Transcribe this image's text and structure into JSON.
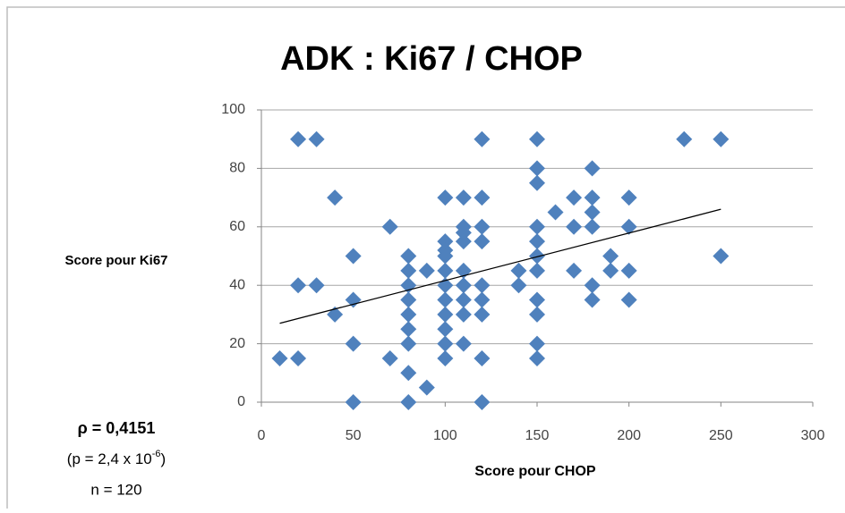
{
  "chart_data": {
    "type": "scatter",
    "title": "ADK : Ki67 / CHOP",
    "xlabel": "Score pour CHOP",
    "ylabel": "Score pour Ki67",
    "annotations": {
      "rho": "ρ = 0,4151",
      "p_text": "(p = 2,4 x 10",
      "p_exponent": "-6",
      "p_close": ")",
      "n": "n = 120"
    },
    "xlim": [
      0,
      300
    ],
    "xticks": [
      0,
      50,
      100,
      150,
      200,
      250,
      300
    ],
    "ylim": [
      0,
      100
    ],
    "yticks": [
      0,
      20,
      40,
      60,
      80,
      100
    ],
    "grid": true,
    "color": "#4f81bd",
    "x": [
      10,
      20,
      20,
      20,
      30,
      30,
      40,
      40,
      50,
      50,
      50,
      50,
      70,
      70,
      80,
      80,
      80,
      80,
      80,
      80,
      80,
      80,
      80,
      90,
      90,
      100,
      100,
      100,
      100,
      100,
      100,
      100,
      100,
      100,
      100,
      100,
      110,
      110,
      110,
      110,
      110,
      110,
      110,
      110,
      110,
      120,
      120,
      120,
      120,
      120,
      120,
      120,
      120,
      120,
      140,
      140,
      150,
      150,
      150,
      150,
      150,
      150,
      150,
      150,
      150,
      150,
      150,
      160,
      170,
      170,
      170,
      180,
      180,
      180,
      180,
      180,
      180,
      190,
      190,
      200,
      200,
      200,
      200,
      230,
      250,
      250
    ],
    "values": [
      15,
      15,
      40,
      90,
      90,
      40,
      70,
      30,
      50,
      35,
      20,
      0,
      60,
      15,
      50,
      45,
      40,
      35,
      30,
      25,
      20,
      10,
      0,
      45,
      5,
      70,
      55,
      52,
      50,
      45,
      40,
      35,
      30,
      25,
      20,
      15,
      70,
      60,
      58,
      55,
      45,
      40,
      35,
      30,
      20,
      90,
      70,
      60,
      55,
      40,
      35,
      30,
      15,
      0,
      45,
      40,
      90,
      80,
      75,
      60,
      55,
      50,
      45,
      35,
      30,
      20,
      15,
      65,
      70,
      60,
      45,
      80,
      70,
      65,
      60,
      40,
      35,
      50,
      45,
      70,
      60,
      45,
      35,
      90,
      90,
      50
    ],
    "trendline": {
      "x": [
        10,
        250
      ],
      "values": [
        27,
        66
      ]
    }
  }
}
